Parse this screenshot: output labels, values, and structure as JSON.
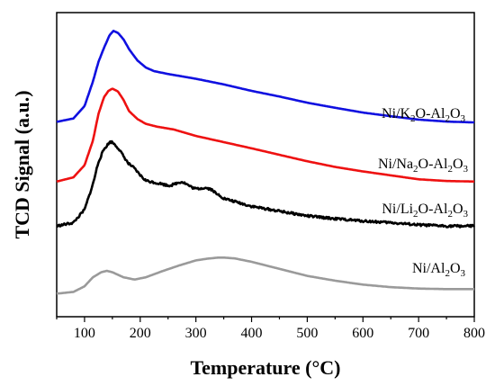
{
  "chart_data": {
    "type": "line",
    "title": "",
    "xlabel": "Temperature (°C)",
    "ylabel": "TCD Signal (a.u.)",
    "xlim": [
      50,
      800
    ],
    "x_ticks": [
      100,
      200,
      300,
      400,
      500,
      600,
      700,
      800
    ],
    "y_ticks": [],
    "grid": false,
    "legend": "inline labels at right of each curve",
    "series": [
      {
        "label_parts": [
          [
            "Ni/K",
            false
          ],
          [
            "2",
            true
          ],
          [
            "O-Al",
            false
          ],
          [
            "2",
            true
          ],
          [
            "O",
            false
          ],
          [
            "3",
            true
          ]
        ],
        "color": "#1010e0",
        "noise": 0,
        "points": [
          [
            50,
            0.212
          ],
          [
            80,
            0.224
          ],
          [
            100,
            0.268
          ],
          [
            115,
            0.355
          ],
          [
            125,
            0.425
          ],
          [
            135,
            0.475
          ],
          [
            145,
            0.52
          ],
          [
            152,
            0.535
          ],
          [
            160,
            0.528
          ],
          [
            170,
            0.505
          ],
          [
            180,
            0.47
          ],
          [
            195,
            0.43
          ],
          [
            210,
            0.405
          ],
          [
            225,
            0.392
          ],
          [
            250,
            0.382
          ],
          [
            300,
            0.365
          ],
          [
            350,
            0.345
          ],
          [
            400,
            0.322
          ],
          [
            450,
            0.302
          ],
          [
            500,
            0.28
          ],
          [
            550,
            0.262
          ],
          [
            600,
            0.245
          ],
          [
            650,
            0.232
          ],
          [
            700,
            0.22
          ],
          [
            750,
            0.213
          ],
          [
            800,
            0.21
          ]
        ]
      },
      {
        "label_parts": [
          [
            "Ni/Na",
            false
          ],
          [
            "2",
            true
          ],
          [
            "O-Al",
            false
          ],
          [
            "2",
            true
          ],
          [
            "O",
            false
          ],
          [
            "3",
            true
          ]
        ],
        "color": "#ee1111",
        "noise": 0,
        "points": [
          [
            50,
            0.0
          ],
          [
            80,
            0.015
          ],
          [
            100,
            0.058
          ],
          [
            115,
            0.145
          ],
          [
            125,
            0.24
          ],
          [
            135,
            0.3
          ],
          [
            143,
            0.322
          ],
          [
            150,
            0.33
          ],
          [
            160,
            0.32
          ],
          [
            170,
            0.29
          ],
          [
            180,
            0.25
          ],
          [
            195,
            0.222
          ],
          [
            210,
            0.205
          ],
          [
            230,
            0.195
          ],
          [
            260,
            0.185
          ],
          [
            300,
            0.162
          ],
          [
            350,
            0.14
          ],
          [
            400,
            0.118
          ],
          [
            450,
            0.095
          ],
          [
            500,
            0.072
          ],
          [
            550,
            0.052
          ],
          [
            600,
            0.036
          ],
          [
            650,
            0.022
          ],
          [
            700,
            0.008
          ],
          [
            750,
            0.002
          ],
          [
            800,
            0.0
          ]
        ]
      },
      {
        "label_parts": [
          [
            "Ni/Li",
            false
          ],
          [
            "2",
            true
          ],
          [
            "O-Al",
            false
          ],
          [
            "2",
            true
          ],
          [
            "O",
            false
          ],
          [
            "3",
            true
          ]
        ],
        "color": "#000000",
        "noise": 0.004,
        "points": [
          [
            50,
            -0.158
          ],
          [
            80,
            -0.146
          ],
          [
            100,
            -0.1
          ],
          [
            115,
            -0.01
          ],
          [
            125,
            0.07
          ],
          [
            135,
            0.115
          ],
          [
            145,
            0.14
          ],
          [
            150,
            0.14
          ],
          [
            160,
            0.12
          ],
          [
            170,
            0.09
          ],
          [
            180,
            0.06
          ],
          [
            195,
            0.032
          ],
          [
            210,
            0.008
          ],
          [
            230,
            -0.01
          ],
          [
            250,
            -0.01
          ],
          [
            275,
            -0.005
          ],
          [
            300,
            -0.022
          ],
          [
            330,
            -0.03
          ],
          [
            350,
            -0.06
          ],
          [
            400,
            -0.088
          ],
          [
            450,
            -0.105
          ],
          [
            500,
            -0.122
          ],
          [
            550,
            -0.132
          ],
          [
            600,
            -0.14
          ],
          [
            650,
            -0.146
          ],
          [
            700,
            -0.154
          ],
          [
            750,
            -0.158
          ],
          [
            800,
            -0.158
          ]
        ]
      },
      {
        "label_parts": [
          [
            "Ni/Al",
            false
          ],
          [
            "2",
            true
          ],
          [
            "O",
            false
          ],
          [
            "3",
            true
          ]
        ],
        "color": "#9a9a9a",
        "noise": 0,
        "points": [
          [
            50,
            -0.398
          ],
          [
            80,
            -0.392
          ],
          [
            100,
            -0.372
          ],
          [
            115,
            -0.34
          ],
          [
            130,
            -0.322
          ],
          [
            140,
            -0.317
          ],
          [
            150,
            -0.322
          ],
          [
            170,
            -0.34
          ],
          [
            190,
            -0.348
          ],
          [
            210,
            -0.34
          ],
          [
            240,
            -0.318
          ],
          [
            270,
            -0.298
          ],
          [
            300,
            -0.28
          ],
          [
            320,
            -0.274
          ],
          [
            340,
            -0.27
          ],
          [
            350,
            -0.27
          ],
          [
            370,
            -0.273
          ],
          [
            400,
            -0.285
          ],
          [
            450,
            -0.31
          ],
          [
            500,
            -0.335
          ],
          [
            550,
            -0.352
          ],
          [
            600,
            -0.366
          ],
          [
            650,
            -0.375
          ],
          [
            700,
            -0.38
          ],
          [
            750,
            -0.382
          ],
          [
            800,
            -0.382
          ]
        ]
      }
    ]
  }
}
